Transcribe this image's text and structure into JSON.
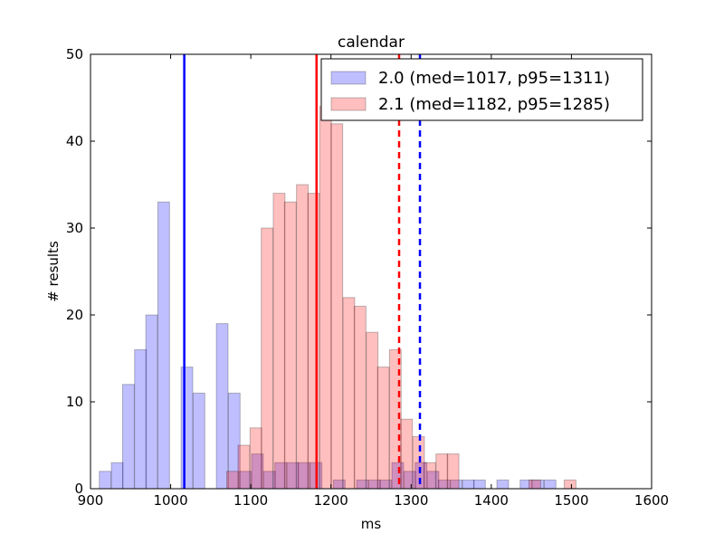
{
  "chart_data": {
    "type": "bar",
    "title": "calendar",
    "xlabel": "ms",
    "ylabel": "# results",
    "xlim": [
      900,
      1600
    ],
    "ylim": [
      0,
      50
    ],
    "xticks": [
      900,
      1000,
      1100,
      1200,
      1300,
      1400,
      1500,
      1600
    ],
    "yticks": [
      0,
      10,
      20,
      30,
      40,
      50
    ],
    "grid": false,
    "legend_position": "top-right",
    "series": [
      {
        "name": "2.0 (med=1017, p95=1311)",
        "color": "#0000ff",
        "bin_width": 14.6,
        "bins": [
          {
            "x": 911,
            "count": 2
          },
          {
            "x": 926,
            "count": 3
          },
          {
            "x": 940,
            "count": 12
          },
          {
            "x": 955,
            "count": 16
          },
          {
            "x": 969,
            "count": 20
          },
          {
            "x": 984,
            "count": 33
          },
          {
            "x": 999,
            "count": 0
          },
          {
            "x": 1013,
            "count": 14
          },
          {
            "x": 1028,
            "count": 11
          },
          {
            "x": 1042,
            "count": 0
          },
          {
            "x": 1057,
            "count": 19
          },
          {
            "x": 1072,
            "count": 11
          },
          {
            "x": 1086,
            "count": 2
          },
          {
            "x": 1101,
            "count": 4
          },
          {
            "x": 1116,
            "count": 2
          },
          {
            "x": 1130,
            "count": 3
          },
          {
            "x": 1145,
            "count": 3
          },
          {
            "x": 1159,
            "count": 3
          },
          {
            "x": 1174,
            "count": 3
          },
          {
            "x": 1188,
            "count": 0
          },
          {
            "x": 1203,
            "count": 1
          },
          {
            "x": 1218,
            "count": 0
          },
          {
            "x": 1232,
            "count": 1
          },
          {
            "x": 1247,
            "count": 1
          },
          {
            "x": 1261,
            "count": 1
          },
          {
            "x": 1276,
            "count": 3
          },
          {
            "x": 1291,
            "count": 2
          },
          {
            "x": 1305,
            "count": 3
          },
          {
            "x": 1320,
            "count": 2
          },
          {
            "x": 1334,
            "count": 1
          },
          {
            "x": 1349,
            "count": 1
          },
          {
            "x": 1364,
            "count": 1
          },
          {
            "x": 1378,
            "count": 1
          },
          {
            "x": 1393,
            "count": 0
          },
          {
            "x": 1407,
            "count": 1
          },
          {
            "x": 1422,
            "count": 0
          },
          {
            "x": 1436,
            "count": 1
          },
          {
            "x": 1451,
            "count": 1
          },
          {
            "x": 1466,
            "count": 1
          }
        ],
        "median": 1017,
        "p95": 1311
      },
      {
        "name": "2.1 (med=1182, p95=1285)",
        "color": "#ff0000",
        "bin_width": 14.6,
        "bins": [
          {
            "x": 1070,
            "count": 2
          },
          {
            "x": 1084,
            "count": 5
          },
          {
            "x": 1099,
            "count": 7
          },
          {
            "x": 1113,
            "count": 30
          },
          {
            "x": 1128,
            "count": 34
          },
          {
            "x": 1142,
            "count": 33
          },
          {
            "x": 1157,
            "count": 35
          },
          {
            "x": 1171,
            "count": 34
          },
          {
            "x": 1186,
            "count": 44
          },
          {
            "x": 1200,
            "count": 42
          },
          {
            "x": 1215,
            "count": 22
          },
          {
            "x": 1229,
            "count": 21
          },
          {
            "x": 1244,
            "count": 18
          },
          {
            "x": 1258,
            "count": 14
          },
          {
            "x": 1273,
            "count": 16
          },
          {
            "x": 1287,
            "count": 8
          },
          {
            "x": 1302,
            "count": 6
          },
          {
            "x": 1316,
            "count": 3
          },
          {
            "x": 1331,
            "count": 4
          },
          {
            "x": 1345,
            "count": 4
          },
          {
            "x": 1360,
            "count": 0
          },
          {
            "x": 1375,
            "count": 0
          },
          {
            "x": 1389,
            "count": 0
          },
          {
            "x": 1404,
            "count": 0
          },
          {
            "x": 1418,
            "count": 0
          },
          {
            "x": 1433,
            "count": 0
          },
          {
            "x": 1447,
            "count": 1
          },
          {
            "x": 1462,
            "count": 0
          },
          {
            "x": 1476,
            "count": 0
          },
          {
            "x": 1491,
            "count": 1
          }
        ],
        "median": 1182,
        "p95": 1285
      }
    ]
  }
}
